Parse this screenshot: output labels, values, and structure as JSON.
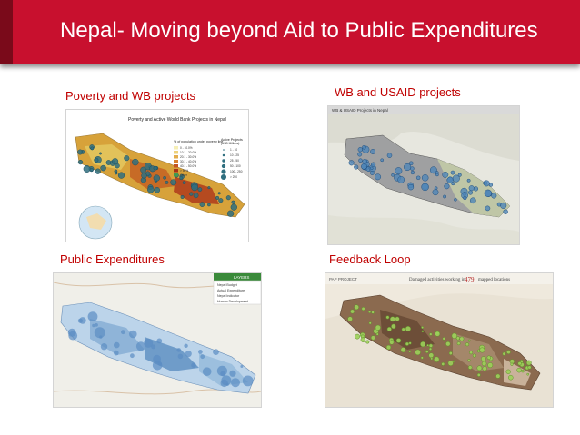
{
  "slide": {
    "title": "Nepal- Moving beyond Aid to Public Expenditures",
    "accent_color": "#c8102e"
  },
  "panels": {
    "poverty": {
      "label": "Poverty and WB projects",
      "map_title": "Poverty and Active World Bank Projects in Nepal",
      "legend_title": "% of population under poverty line",
      "legend2_title": "Active Projects",
      "legend2_subtitle": "(USD Millions)",
      "legend_items": [
        "0 - 10.0%",
        "10.1 - 20.0%",
        "20.1 - 30.0%",
        "30.1 - 40.0%",
        "40.1 - 50.0%",
        "> 50%",
        "Other"
      ],
      "legend2_items": [
        "1 - 10",
        "10 - 25",
        "25 - 50",
        "50 - 100",
        "100 - 250",
        "> 250"
      ]
    },
    "wb_usaid": {
      "label": "WB and USAID projects",
      "map_title": "WB & USAID Projects in Nepal"
    },
    "public_exp": {
      "label": "Public Expenditures",
      "layers_title": "LAYERS",
      "layer_items": [
        "Nepal Budget",
        "Actual Expenditure",
        "Nepal Indicator",
        "Human Development"
      ]
    },
    "feedback": {
      "label": "Feedback Loop",
      "app_name": "PAP PROJECT",
      "header_text_pre": "Damaged activities working in",
      "header_count": "479",
      "header_text_post": "mapped locations"
    }
  }
}
